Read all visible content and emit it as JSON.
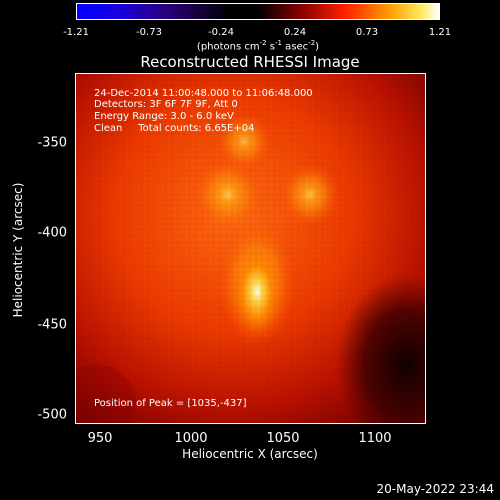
{
  "colorbar": {
    "ticks": [
      "-1.21",
      "-0.73",
      "-0.24",
      "0.24",
      "0.73",
      "1.21"
    ],
    "units_prefix": "(photons cm",
    "units_sup1": "-2",
    "units_mid1": " s",
    "units_sup2": "-1",
    "units_mid2": " asec",
    "units_sup3": "-2",
    "units_suffix": ")"
  },
  "title": "Reconstructed RHESSI Image",
  "annotation": {
    "line1": "24-Dec-2014 11:00:48.000 to 11:06:48.000",
    "line2": "Detectors: 3F 6F 7F 9F, Att 0",
    "line3": "Energy Range: 3.0 - 6.0 keV",
    "line4": "Clean     Total counts: 6.65E+04",
    "peak": "Position of Peak = [1035,-437]"
  },
  "axes": {
    "xlabel": "Heliocentric X (arcsec)",
    "ylabel": "Heliocentric Y (arcsec)",
    "xticks": [
      "950",
      "1000",
      "1050",
      "1100"
    ],
    "yticks": [
      "-350",
      "-400",
      "-450",
      "-500"
    ]
  },
  "timestamp": "20-May-2022 23:44",
  "chart_data": {
    "type": "heatmap",
    "title": "Reconstructed RHESSI Image",
    "xlabel": "Heliocentric X (arcsec)",
    "ylabel": "Heliocentric Y (arcsec)",
    "xlim": [
      936,
      1127
    ],
    "ylim": [
      -509,
      -318
    ],
    "colorbar_range": [
      -1.21,
      1.21
    ],
    "peak": [
      1035,
      -437
    ],
    "sources": [
      {
        "x": 1035,
        "y": -437,
        "relative_intensity": 1.0
      },
      {
        "x": 1019,
        "y": -384,
        "relative_intensity": 0.7
      },
      {
        "x": 1064,
        "y": -384,
        "relative_intensity": 0.55
      },
      {
        "x": 1028,
        "y": -355,
        "relative_intensity": 0.4
      }
    ]
  }
}
